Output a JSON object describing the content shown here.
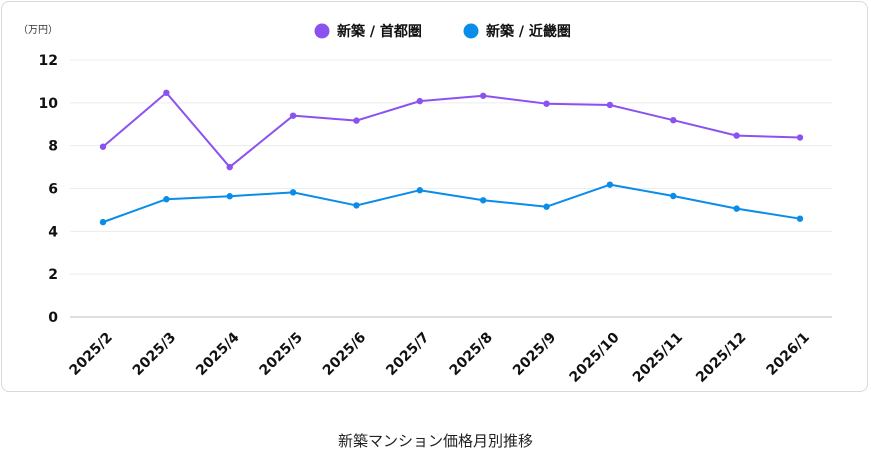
{
  "chart_data": {
    "type": "line",
    "unit_label": "（万円）",
    "categories": [
      "2025/2",
      "2025/3",
      "2025/4",
      "2025/5",
      "2025/6",
      "2025/7",
      "2025/8",
      "2025/9",
      "2025/10",
      "2025/11",
      "2025/12",
      "2026/1"
    ],
    "series": [
      {
        "name": "新築 / 首都圏",
        "color": "#8b52f0",
        "values": [
          7.95,
          10.47,
          7.0,
          9.4,
          9.17,
          10.08,
          10.33,
          9.96,
          9.9,
          9.19,
          8.47,
          8.38
        ]
      },
      {
        "name": "新築 / 近畿圏",
        "color": "#0a8de8",
        "values": [
          4.43,
          5.5,
          5.64,
          5.82,
          5.21,
          5.92,
          5.45,
          5.15,
          6.18,
          5.65,
          5.06,
          4.59
        ]
      }
    ],
    "ylim": [
      0,
      12
    ],
    "yticks": [
      0,
      2,
      4,
      6,
      8,
      10,
      12
    ],
    "legend_position": "top-center",
    "grid": true
  },
  "caption": "新築マンション価格月別推移"
}
